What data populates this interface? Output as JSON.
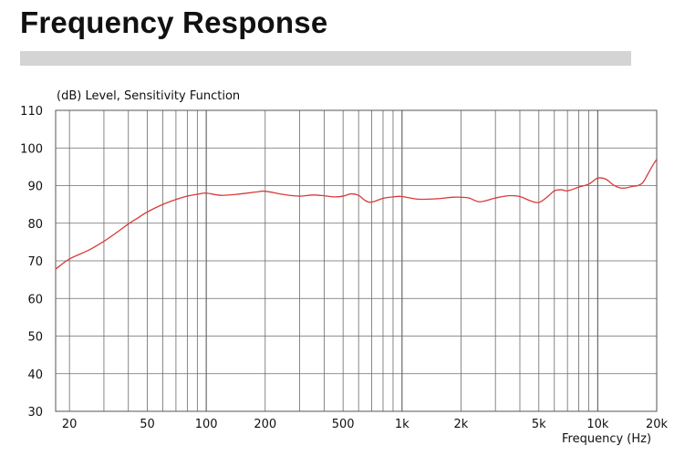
{
  "page": {
    "heading": "Frequency Response"
  },
  "chart_data": {
    "type": "line",
    "title": "",
    "ylabel": "(dB)  Level,  Sensitivity Function",
    "xlabel": "Frequency  (Hz)",
    "xscale": "log",
    "xlim": [
      17,
      20000
    ],
    "ylim": [
      30,
      110
    ],
    "grid": true,
    "x_ticks": [
      {
        "value": 20,
        "label": "20"
      },
      {
        "value": 50,
        "label": "50"
      },
      {
        "value": 100,
        "label": "100"
      },
      {
        "value": 200,
        "label": "200"
      },
      {
        "value": 500,
        "label": "500"
      },
      {
        "value": 1000,
        "label": "1k"
      },
      {
        "value": 2000,
        "label": "2k"
      },
      {
        "value": 5000,
        "label": "5k"
      },
      {
        "value": 10000,
        "label": "10k"
      },
      {
        "value": 20000,
        "label": "20k"
      }
    ],
    "y_ticks": [
      30,
      40,
      50,
      60,
      70,
      80,
      90,
      100,
      110
    ],
    "series": [
      {
        "color": "#d93a3a",
        "x": [
          17,
          20,
          25,
          30,
          35,
          40,
          45,
          50,
          60,
          70,
          80,
          90,
          100,
          120,
          150,
          180,
          200,
          250,
          300,
          350,
          400,
          450,
          500,
          550,
          600,
          650,
          700,
          800,
          900,
          1000,
          1200,
          1500,
          1800,
          2000,
          2200,
          2500,
          3000,
          3500,
          4000,
          4500,
          5000,
          5500,
          6000,
          6500,
          7000,
          8000,
          9000,
          10000,
          11000,
          12000,
          13000,
          14000,
          15000,
          16000,
          17000,
          18000,
          19000,
          20000
        ],
        "y": [
          67.8,
          70.5,
          72.8,
          75.2,
          77.6,
          79.8,
          81.5,
          83.0,
          85.0,
          86.3,
          87.2,
          87.7,
          88.0,
          87.4,
          87.8,
          88.3,
          88.5,
          87.6,
          87.2,
          87.5,
          87.3,
          87.0,
          87.2,
          87.8,
          87.4,
          86.0,
          85.6,
          86.6,
          87.0,
          87.1,
          86.4,
          86.5,
          86.9,
          86.9,
          86.7,
          85.7,
          86.7,
          87.3,
          87.1,
          86.0,
          85.5,
          86.9,
          88.6,
          88.9,
          88.6,
          89.6,
          90.4,
          92.0,
          91.7,
          90.2,
          89.4,
          89.4,
          89.8,
          90.0,
          90.8,
          93.0,
          95.2,
          97.0
        ]
      }
    ]
  }
}
